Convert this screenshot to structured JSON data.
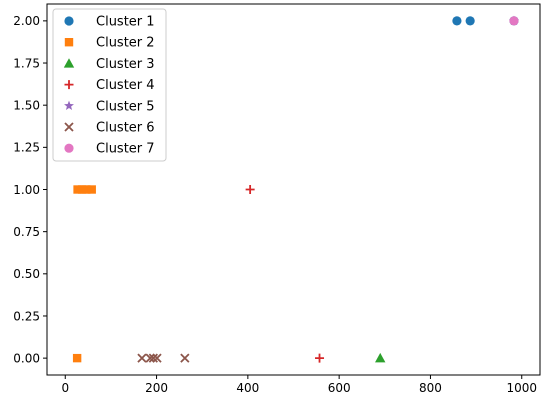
{
  "chart_data": {
    "type": "scatter",
    "title": "",
    "xlabel": "",
    "ylabel": "",
    "xlim": [
      -40,
      1040
    ],
    "ylim": [
      -0.1,
      2.1
    ],
    "xticks": [
      0,
      200,
      400,
      600,
      800,
      1000
    ],
    "yticks": [
      0.0,
      0.25,
      0.5,
      0.75,
      1.0,
      1.25,
      1.5,
      1.75,
      2.0
    ],
    "xtick_labels": [
      "0",
      "200",
      "400",
      "600",
      "800",
      "1000"
    ],
    "ytick_labels": [
      "0.00",
      "0.25",
      "0.50",
      "0.75",
      "1.00",
      "1.25",
      "1.50",
      "1.75",
      "2.00"
    ],
    "grid": false,
    "legend_position": "upper-left",
    "series": [
      {
        "name": "Cluster 1",
        "marker": "circle",
        "color": "#1f77b4",
        "points": [
          [
            858,
            2
          ],
          [
            887,
            2
          ],
          [
            983,
            2
          ]
        ]
      },
      {
        "name": "Cluster 2",
        "marker": "square",
        "color": "#ff7f0e",
        "points": [
          [
            27,
            1
          ],
          [
            37,
            1
          ],
          [
            46,
            1
          ],
          [
            58,
            1
          ],
          [
            26,
            0
          ]
        ]
      },
      {
        "name": "Cluster 3",
        "marker": "triangle",
        "color": "#2ca02c",
        "points": [
          [
            690,
            0
          ]
        ]
      },
      {
        "name": "Cluster 4",
        "marker": "plus",
        "color": "#d62728",
        "points": [
          [
            405,
            1
          ],
          [
            557,
            0
          ]
        ]
      },
      {
        "name": "Cluster 5",
        "marker": "star",
        "color": "#9467bd",
        "points": [
          [
            983,
            2
          ]
        ]
      },
      {
        "name": "Cluster 6",
        "marker": "x",
        "color": "#8c564b",
        "points": [
          [
            168,
            0
          ],
          [
            186,
            0
          ],
          [
            193,
            0
          ],
          [
            201,
            0
          ],
          [
            262,
            0
          ]
        ]
      },
      {
        "name": "Cluster 7",
        "marker": "circle",
        "color": "#e377c2",
        "points": [
          [
            983,
            2
          ]
        ]
      }
    ]
  }
}
